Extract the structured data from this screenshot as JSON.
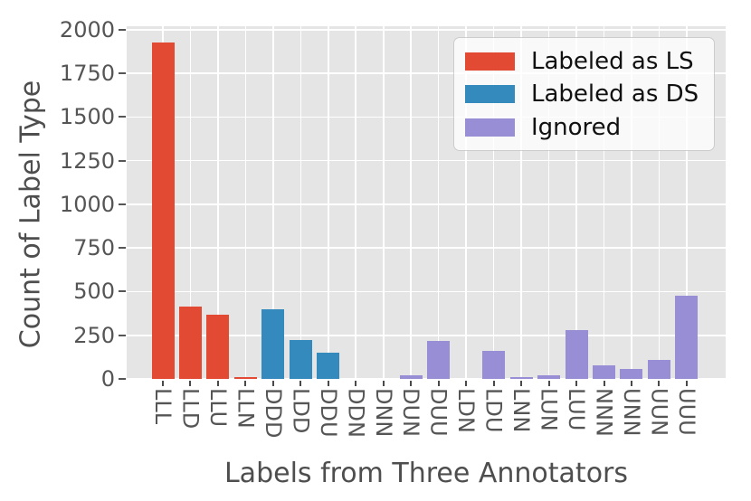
{
  "chart_data": {
    "type": "bar",
    "title": "",
    "xlabel": "Labels from Three Annotators",
    "ylabel": "Count of Label Type",
    "categories": [
      "LLL",
      "LLD",
      "LLU",
      "LLN",
      "DDD",
      "LDD",
      "DDU",
      "DDN",
      "DNN",
      "DUN",
      "DUU",
      "LDN",
      "LDU",
      "LNN",
      "LUN",
      "LUU",
      "NNN",
      "UNN",
      "UUN",
      "UUU"
    ],
    "values": [
      1925,
      415,
      370,
      13,
      400,
      225,
      150,
      0,
      0,
      22,
      220,
      0,
      162,
      8,
      22,
      280,
      80,
      55,
      110,
      475
    ],
    "groups": [
      "LS",
      "LS",
      "LS",
      "LS",
      "DS",
      "DS",
      "DS",
      "DS",
      "IGN",
      "IGN",
      "IGN",
      "IGN",
      "IGN",
      "IGN",
      "IGN",
      "IGN",
      "IGN",
      "IGN",
      "IGN",
      "IGN"
    ],
    "group_colors": {
      "LS": "#e24a33",
      "DS": "#348abd",
      "IGN": "#988ed5"
    },
    "ylim": [
      0,
      2020
    ],
    "yticks": [
      0,
      250,
      500,
      750,
      1000,
      1250,
      1500,
      1750,
      2000
    ],
    "grid": true,
    "plot_background": "#e5e5e5",
    "gridline_color": "#ffffff",
    "legend": {
      "position": "upper right",
      "entries": [
        {
          "label": "Labeled as LS",
          "group": "LS",
          "color": "#e24a33"
        },
        {
          "label": "Labeled as DS",
          "group": "DS",
          "color": "#348abd"
        },
        {
          "label": "Ignored",
          "group": "IGN",
          "color": "#988ed5"
        }
      ]
    }
  }
}
